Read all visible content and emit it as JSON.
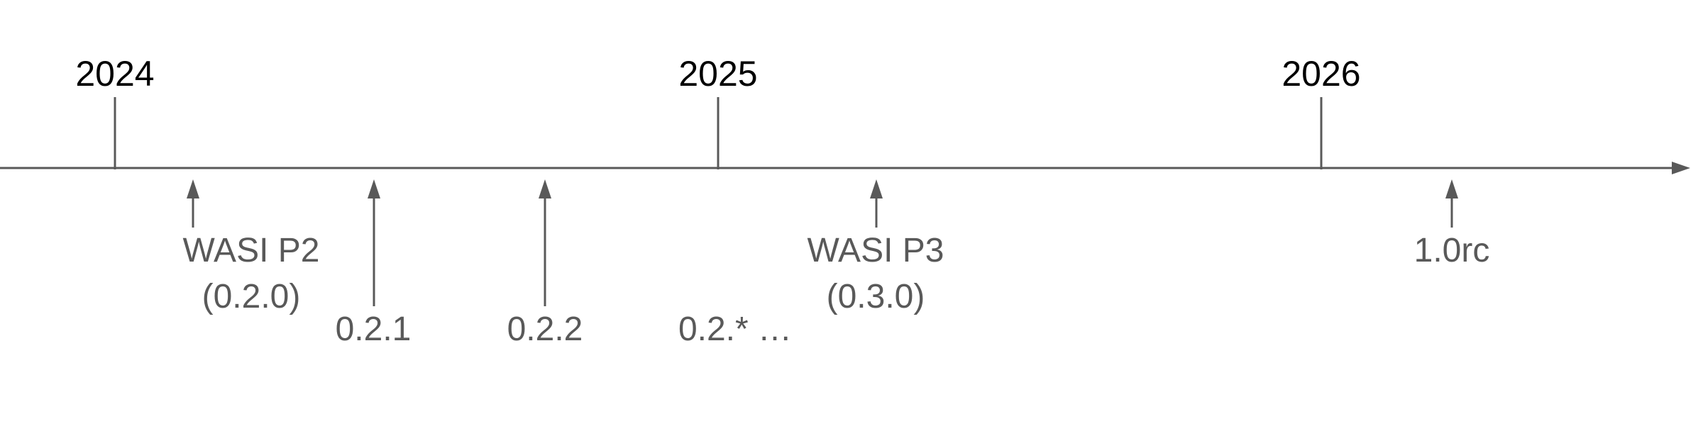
{
  "years": [
    {
      "label": "2024"
    },
    {
      "label": "2025"
    },
    {
      "label": "2026"
    }
  ],
  "releases": [
    {
      "id": "wasi-p2",
      "lines": [
        "WASI P2",
        "(0.2.0)"
      ]
    },
    {
      "id": "v021",
      "lines": [
        "0.2.1"
      ]
    },
    {
      "id": "v022",
      "lines": [
        "0.2.2"
      ]
    },
    {
      "id": "v02x",
      "lines": [
        "0.2.* …"
      ]
    },
    {
      "id": "wasi-p3",
      "lines": [
        "WASI P3",
        "(0.3.0)"
      ]
    },
    {
      "id": "v10rc",
      "lines": [
        "1.0rc"
      ]
    }
  ],
  "colors": {
    "axis": "#595959",
    "year_text": "#000000",
    "release_text": "#595959"
  }
}
